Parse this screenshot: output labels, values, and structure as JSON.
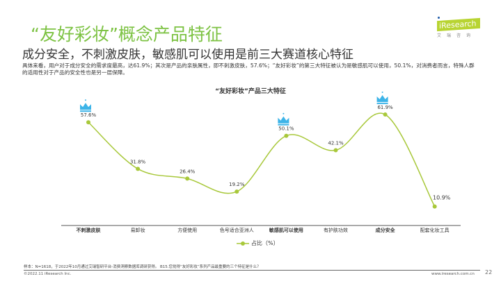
{
  "header": {
    "title": "“友好彩妆”概念产品特征",
    "subtitle": "成分安全，不刺激皮肤，敏感肌可以使用是前三大赛道核心特征",
    "description": "具体来看，用户对于成分安全的需求度最高，达61.9%；其次是产品的亲肤属性，即不刺激皮肤，57.6%；“友好彩妆”的第三大特征被认为是敏感肌可以使用，50.1%，对消费者而言，特殊人群的适用性对于产品的安全性也是另一层保障。"
  },
  "logo": {
    "brand": "iResearch",
    "cn": "艾瑞咨询"
  },
  "chart_data": {
    "type": "line",
    "title": "“友好彩妆”产品三大特征",
    "categories": [
      "不刺激皮肤",
      "易卸妆",
      "方便使用",
      "色号适合亚洲人",
      "敏感肌可以使用",
      "有护肤功效",
      "成分安全",
      "配套化妆工具"
    ],
    "bold_categories": [
      "不刺激皮肤",
      "敏感肌可以使用",
      "成分安全"
    ],
    "series": [
      {
        "name": "占比（%）",
        "values": [
          57.6,
          31.8,
          26.4,
          19.2,
          50.1,
          42.1,
          61.9,
          10.9
        ]
      }
    ],
    "labels": [
      "57.6%",
      "31.8%",
      "26.4%",
      "19.2%",
      "50.1%",
      "42.1%",
      "61.9%",
      "10.9%"
    ],
    "crowned": [
      "不刺激皮肤",
      "敏感肌可以使用",
      "成分安全"
    ],
    "legend": "bottom",
    "grid": false,
    "color": "#a8c83a",
    "crown_color": "#3db4e8"
  },
  "footer": {
    "source": "样本：N=1618，于2022年10月通过艾瑞智研平台-消费洞察数据库调研获得。 B15.您觉得“友好彩妆”系列产品最重要的三个特征是什么？",
    "copyright": "©2022.11 iResearch Inc.",
    "url": "www.iresearch.com.cn",
    "page": "22"
  }
}
